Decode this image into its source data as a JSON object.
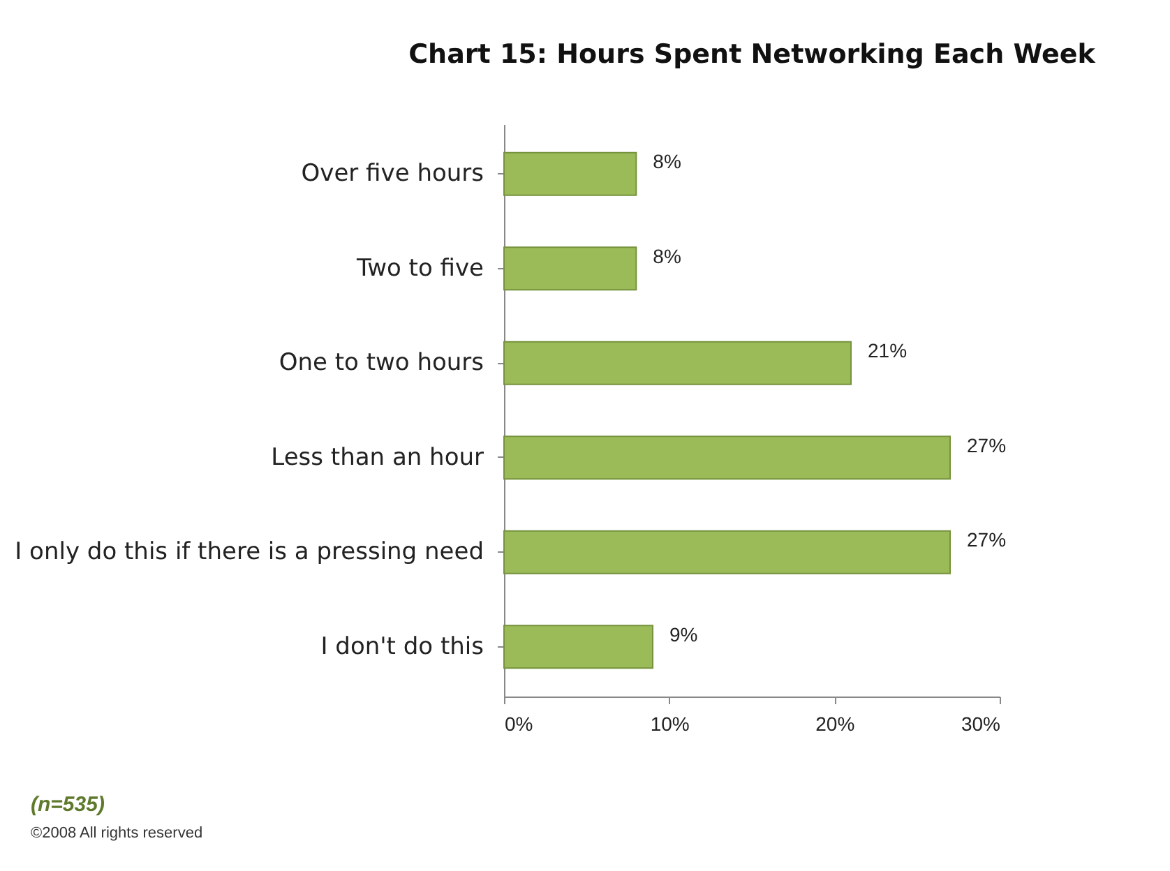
{
  "chart_data": {
    "type": "bar",
    "orientation": "horizontal",
    "title": "Chart 15: Hours Spent Networking Each Week",
    "categories": [
      "Over five hours",
      "Two to five",
      "One to two hours",
      "Less than an hour",
      "I only do this if there is a pressing need",
      "I don't do this"
    ],
    "values": [
      8,
      8,
      21,
      27,
      27,
      9
    ],
    "color": "#9bbb59",
    "value_labels": [
      "8%",
      "8%",
      "21%",
      "27%",
      "27%",
      "9%"
    ],
    "xlim": [
      0,
      30
    ],
    "xticks": [
      {
        "value": 0,
        "label": "0%"
      },
      {
        "value": 10,
        "label": "10%"
      },
      {
        "value": 20,
        "label": "20%"
      },
      {
        "value": 30,
        "label": "30%"
      }
    ],
    "annotations": [
      "(n=535)",
      "©2008 All rights reserved"
    ]
  }
}
